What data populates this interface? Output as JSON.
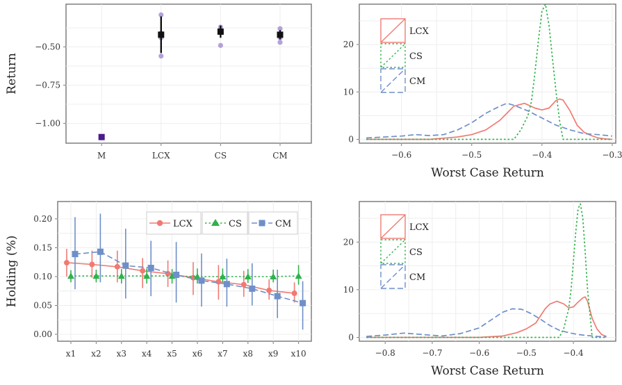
{
  "colors": {
    "LCX": "#F07A72",
    "CS": "#2DB34A",
    "CM": "#6E8FC8",
    "M": "#4B1A8C"
  },
  "chart_data": [
    {
      "id": "p1",
      "type": "scatter",
      "ylabel": "Return",
      "xlabel": "",
      "categories": [
        "M",
        "LCX",
        "CS",
        "CM"
      ],
      "yticks": [
        -1.0,
        -0.75,
        -0.5
      ],
      "ytick_labels": [
        "−1.00",
        "−0.75",
        "−0.50"
      ],
      "ylim": [
        -1.13,
        -0.22
      ],
      "points": [
        {
          "category": "M",
          "values": [
            -1.09
          ],
          "mean": -1.09,
          "lo": -1.09,
          "hi": -1.09
        },
        {
          "category": "LCX",
          "values": [
            -0.29,
            -0.41,
            -0.44,
            -0.56
          ],
          "mean": -0.42,
          "lo": -0.54,
          "hi": -0.3
        },
        {
          "category": "CS",
          "values": [
            -0.37,
            -0.4,
            -0.49
          ],
          "mean": -0.4,
          "lo": -0.44,
          "hi": -0.36
        },
        {
          "category": "CM",
          "values": [
            -0.38,
            -0.42,
            -0.44,
            -0.47
          ],
          "mean": -0.42,
          "lo": -0.45,
          "hi": -0.39
        }
      ]
    },
    {
      "id": "p2",
      "type": "line",
      "xlabel": "Worst Case Return",
      "ylabel": "",
      "xlim": [
        -0.66,
        -0.295
      ],
      "ylim": [
        -0.8,
        28.5
      ],
      "xticks": [
        -0.6,
        -0.5,
        -0.4,
        -0.3
      ],
      "xtick_labels": [
        "−0.6",
        "−0.5",
        "−0.4",
        "−0.3"
      ],
      "yticks": [
        0,
        10,
        20
      ],
      "ytick_labels": [
        "0",
        "10",
        "20"
      ],
      "legend": [
        "LCX",
        "CS",
        "CM"
      ],
      "series": [
        {
          "name": "LCX",
          "x": [
            -0.65,
            -0.56,
            -0.52,
            -0.5,
            -0.48,
            -0.46,
            -0.45,
            -0.44,
            -0.425,
            -0.41,
            -0.4,
            -0.39,
            -0.38,
            -0.375,
            -0.37,
            -0.36,
            -0.35,
            -0.34,
            -0.33,
            -0.32,
            -0.31,
            -0.3
          ],
          "y": [
            0,
            0,
            0.5,
            1,
            2,
            4,
            5.5,
            7,
            7.6,
            6.6,
            6.2,
            6.6,
            8.2,
            8.5,
            8.3,
            6,
            3,
            1.5,
            0.8,
            0.3,
            0.1,
            0
          ]
        },
        {
          "name": "CS",
          "x": [
            -0.65,
            -0.44,
            -0.43,
            -0.42,
            -0.415,
            -0.41,
            -0.405,
            -0.4,
            -0.395,
            -0.39,
            -0.385,
            -0.38,
            -0.375,
            -0.37,
            -0.3
          ],
          "y": [
            0,
            0,
            2,
            5,
            8,
            14,
            21,
            27,
            28.5,
            24,
            17,
            10,
            4,
            0,
            0
          ]
        },
        {
          "name": "CM",
          "x": [
            -0.65,
            -0.6,
            -0.58,
            -0.56,
            -0.54,
            -0.52,
            -0.5,
            -0.48,
            -0.46,
            -0.45,
            -0.44,
            -0.42,
            -0.4,
            -0.38,
            -0.36,
            -0.34,
            -0.32,
            -0.3
          ],
          "y": [
            0.3,
            0.7,
            1,
            0.8,
            1,
            2,
            3.5,
            5.5,
            7,
            7.6,
            7.2,
            6,
            4.5,
            3,
            2,
            1.2,
            1,
            0.7
          ]
        }
      ]
    },
    {
      "id": "p3",
      "type": "line",
      "xlabel": "",
      "ylabel": "Holding (%)",
      "categories": [
        "x1",
        "x2",
        "x3",
        "x4",
        "x5",
        "x6",
        "x7",
        "x8",
        "x9",
        "x10"
      ],
      "yticks": [
        0,
        0.05,
        0.1,
        0.15,
        0.2
      ],
      "ytick_labels": [
        "0.00",
        "0.05",
        "0.10",
        "0.15",
        "0.20"
      ],
      "ylim": [
        -0.012,
        0.23
      ],
      "legend": [
        "LCX",
        "CS",
        "CM"
      ],
      "series": [
        {
          "name": "LCX",
          "values": [
            0.124,
            0.121,
            0.117,
            0.11,
            0.105,
            0.098,
            0.091,
            0.086,
            0.076,
            0.071
          ],
          "lo": [
            0.1,
            0.098,
            0.09,
            0.08,
            0.082,
            0.068,
            0.06,
            0.065,
            0.06,
            0.055
          ],
          "hi": [
            0.148,
            0.145,
            0.145,
            0.132,
            0.128,
            0.125,
            0.12,
            0.11,
            0.095,
            0.09
          ]
        },
        {
          "name": "CS",
          "values": [
            0.101,
            0.101,
            0.101,
            0.101,
            0.101,
            0.1,
            0.1,
            0.1,
            0.1,
            0.101
          ],
          "lo": [
            0.09,
            0.09,
            0.088,
            0.088,
            0.088,
            0.088,
            0.09,
            0.089,
            0.09,
            0.086
          ],
          "hi": [
            0.111,
            0.112,
            0.113,
            0.114,
            0.113,
            0.114,
            0.114,
            0.113,
            0.112,
            0.12
          ]
        },
        {
          "name": "CM",
          "values": [
            0.139,
            0.143,
            0.119,
            0.115,
            0.103,
            0.093,
            0.087,
            0.079,
            0.066,
            0.054
          ],
          "lo": [
            0.078,
            0.09,
            0.062,
            0.066,
            0.055,
            0.048,
            0.048,
            0.05,
            0.028,
            0.008
          ],
          "hi": [
            0.203,
            0.209,
            0.183,
            0.162,
            0.16,
            0.14,
            0.131,
            0.123,
            0.112,
            0.092
          ]
        }
      ]
    },
    {
      "id": "p4",
      "type": "line",
      "xlabel": "Worst Case Return",
      "ylabel": "",
      "xlim": [
        -0.855,
        -0.31
      ],
      "ylim": [
        -0.8,
        28.5
      ],
      "xticks": [
        -0.8,
        -0.7,
        -0.6,
        -0.5,
        -0.4
      ],
      "xtick_labels": [
        "−0.8",
        "−0.7",
        "−0.6",
        "−0.5",
        "−0.4"
      ],
      "yticks": [
        0,
        10,
        20
      ],
      "ytick_labels": [
        "0",
        "10",
        "20"
      ],
      "legend": [
        "LCX",
        "CS",
        "CM"
      ],
      "series": [
        {
          "name": "LCX",
          "x": [
            -0.84,
            -0.6,
            -0.55,
            -0.52,
            -0.5,
            -0.48,
            -0.46,
            -0.45,
            -0.435,
            -0.42,
            -0.41,
            -0.4,
            -0.39,
            -0.38,
            -0.375,
            -0.37,
            -0.36,
            -0.35,
            -0.34,
            -0.33
          ],
          "y": [
            0,
            0,
            0.3,
            1,
            1.8,
            3,
            6,
            7,
            7.6,
            7,
            6.2,
            6.4,
            7.4,
            8.3,
            8.5,
            7.6,
            4,
            1.8,
            0.6,
            0.2
          ]
        },
        {
          "name": "CS",
          "x": [
            -0.84,
            -0.43,
            -0.42,
            -0.41,
            -0.405,
            -0.4,
            -0.395,
            -0.39,
            -0.385,
            -0.38,
            -0.375,
            -0.37,
            -0.365,
            -0.36,
            -0.33
          ],
          "y": [
            0,
            0,
            2,
            6,
            10,
            16,
            22,
            27,
            28,
            25,
            18,
            10,
            5,
            0,
            0
          ]
        },
        {
          "name": "CM",
          "x": [
            -0.84,
            -0.8,
            -0.76,
            -0.72,
            -0.68,
            -0.64,
            -0.6,
            -0.57,
            -0.55,
            -0.53,
            -0.51,
            -0.49,
            -0.47,
            -0.45,
            -0.43,
            -0.41,
            -0.39,
            -0.37,
            -0.35,
            -0.33
          ],
          "y": [
            0.2,
            0.5,
            0.9,
            0.6,
            0.3,
            0.8,
            2,
            4,
            5.3,
            6,
            5.9,
            5,
            3.8,
            2.5,
            1.5,
            1,
            0.6,
            0.4,
            0.2,
            0.1
          ]
        }
      ]
    }
  ]
}
